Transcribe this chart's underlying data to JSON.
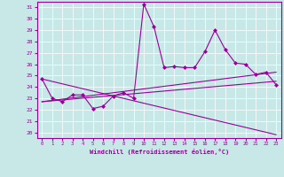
{
  "xlabel": "Windchill (Refroidissement éolien,°C)",
  "background_color": "#c8e8e8",
  "line_color": "#990099",
  "xlim": [
    -0.5,
    23.5
  ],
  "ylim": [
    19.5,
    31.5
  ],
  "yticks": [
    20,
    21,
    22,
    23,
    24,
    25,
    26,
    27,
    28,
    29,
    30,
    31
  ],
  "xticks": [
    0,
    1,
    2,
    3,
    4,
    5,
    6,
    7,
    8,
    9,
    10,
    11,
    12,
    13,
    14,
    15,
    16,
    17,
    18,
    19,
    20,
    21,
    22,
    23
  ],
  "lines": [
    {
      "x": [
        0,
        1,
        2,
        3,
        4,
        5,
        6,
        7,
        8,
        9,
        10,
        11,
        12,
        13,
        14,
        15,
        16,
        17,
        18,
        19,
        20,
        21,
        22,
        23
      ],
      "y": [
        24.7,
        23.0,
        22.7,
        23.3,
        23.3,
        22.1,
        22.3,
        23.2,
        23.5,
        23.0,
        31.3,
        29.3,
        25.7,
        25.8,
        25.7,
        25.7,
        27.1,
        29.0,
        27.3,
        26.1,
        26.0,
        25.1,
        25.3,
        24.2
      ]
    },
    {
      "x": [
        0,
        23
      ],
      "y": [
        24.7,
        19.8
      ]
    },
    {
      "x": [
        0,
        23
      ],
      "y": [
        22.7,
        25.3
      ]
    },
    {
      "x": [
        0,
        23
      ],
      "y": [
        22.7,
        24.5
      ]
    }
  ]
}
